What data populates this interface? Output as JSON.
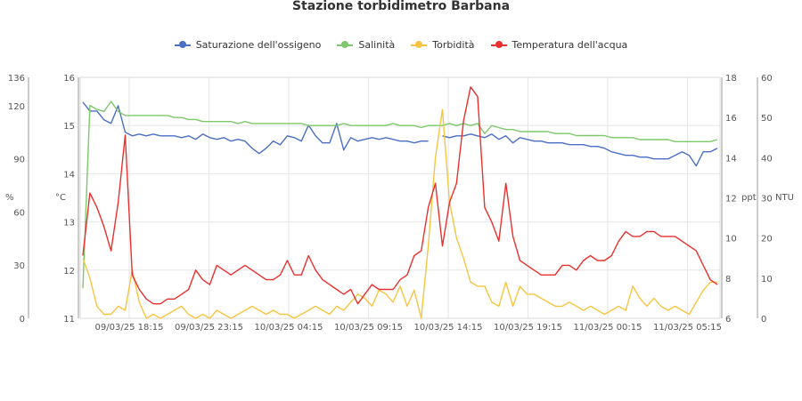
{
  "chart_data": {
    "type": "line",
    "title": "Stazione torbidimetro Barbana",
    "legend": {
      "position": "top-center"
    },
    "x": {
      "ticks": [
        "09/03/25 18:15",
        "09/03/25 23:15",
        "10/03/25 04:15",
        "10/03/25 09:15",
        "10/03/25 14:15",
        "10/03/25 19:15",
        "11/03/25 00:15",
        "11/03/25 05:15"
      ],
      "range": [
        "09/03/25 16:10",
        "11/03/25 08:00"
      ]
    },
    "axes": [
      {
        "id": "pct",
        "label": "%",
        "side": "left-outer",
        "range": [
          0,
          136
        ],
        "ticks": [
          0,
          30,
          60,
          90,
          120,
          136
        ]
      },
      {
        "id": "temp",
        "label": "°C",
        "side": "left-inner",
        "range": [
          11,
          16
        ],
        "ticks": [
          11,
          12,
          13,
          14,
          15,
          16
        ]
      },
      {
        "id": "sal",
        "label": "ppt",
        "side": "right-inner",
        "range": [
          6,
          18
        ],
        "ticks": [
          6,
          8,
          10,
          12,
          14,
          16,
          18
        ]
      },
      {
        "id": "ntu",
        "label": "NTU",
        "side": "right-outer",
        "range": [
          0,
          60
        ],
        "ticks": [
          0,
          10,
          20,
          30,
          40,
          50,
          60
        ]
      }
    ],
    "grid": true,
    "series": [
      {
        "name": "Saturazione dell'ossigeno",
        "color": "#4a6fc5",
        "axis": "pct",
        "values": [
          122,
          117,
          117,
          112,
          110,
          120,
          105,
          103,
          104,
          103,
          104,
          103,
          103,
          103,
          102,
          103,
          101,
          104,
          102,
          101,
          102,
          100,
          101,
          100,
          96,
          93,
          96,
          100,
          98,
          103,
          102,
          100,
          109,
          103,
          99,
          99,
          110,
          95,
          102,
          100,
          101,
          102,
          101,
          102,
          101,
          100,
          100,
          99,
          100,
          100,
          null,
          103,
          102,
          103,
          103,
          104,
          103,
          102,
          104,
          101,
          103,
          99,
          102,
          101,
          100,
          100,
          99,
          99,
          99,
          98,
          98,
          98,
          97,
          97,
          96,
          94,
          93,
          92,
          92,
          91,
          91,
          90,
          90,
          90,
          92,
          94,
          92,
          86,
          94,
          94,
          96
        ]
      },
      {
        "name": "Salinità",
        "color": "#7dc86a",
        "axis": "sal",
        "values": [
          7.5,
          16.6,
          16.4,
          16.3,
          16.8,
          16.3,
          16.1,
          16.1,
          16.1,
          16.1,
          16.1,
          16.1,
          16.1,
          16.0,
          16.0,
          15.9,
          15.9,
          15.8,
          15.8,
          15.8,
          15.8,
          15.8,
          15.7,
          15.8,
          15.7,
          15.7,
          15.7,
          15.7,
          15.7,
          15.7,
          15.7,
          15.7,
          15.6,
          15.6,
          15.6,
          15.6,
          15.6,
          15.7,
          15.6,
          15.6,
          15.6,
          15.6,
          15.6,
          15.6,
          15.7,
          15.6,
          15.6,
          15.6,
          15.5,
          15.6,
          15.6,
          15.6,
          15.7,
          15.6,
          15.7,
          15.6,
          15.7,
          15.2,
          15.6,
          15.5,
          15.4,
          15.4,
          15.3,
          15.3,
          15.3,
          15.3,
          15.3,
          15.2,
          15.2,
          15.2,
          15.1,
          15.1,
          15.1,
          15.1,
          15.1,
          15.0,
          15.0,
          15.0,
          15.0,
          14.9,
          14.9,
          14.9,
          14.9,
          14.9,
          14.8,
          14.8,
          14.8,
          14.8,
          14.8,
          14.8,
          14.9
        ]
      },
      {
        "name": "Torbidità",
        "color": "#f5c542",
        "axis": "ntu",
        "values": [
          15,
          10,
          3,
          1,
          1,
          3,
          2,
          12,
          4,
          0,
          1,
          0,
          1,
          2,
          3,
          1,
          0,
          1,
          0,
          2,
          1,
          0,
          1,
          2,
          3,
          2,
          1,
          2,
          1,
          1,
          0,
          1,
          2,
          3,
          2,
          1,
          3,
          2,
          4,
          6,
          5,
          3,
          7,
          6,
          4,
          8,
          3,
          7,
          0,
          18,
          40,
          52,
          29,
          20,
          15,
          9,
          8,
          8,
          4,
          3,
          9,
          3,
          8,
          6,
          6,
          5,
          4,
          3,
          3,
          4,
          3,
          2,
          3,
          2,
          1,
          2,
          3,
          2,
          8,
          5,
          3,
          5,
          3,
          2,
          3,
          2,
          1,
          4,
          7,
          9,
          9
        ]
      },
      {
        "name": "Temperatura dell'acqua",
        "color": "#e8312e",
        "axis": "temp",
        "values": [
          12.3,
          13.6,
          13.3,
          12.9,
          12.4,
          13.4,
          14.8,
          11.9,
          11.6,
          11.4,
          11.3,
          11.3,
          11.4,
          11.4,
          11.5,
          11.6,
          12.0,
          11.8,
          11.7,
          12.1,
          12.0,
          11.9,
          12.0,
          12.1,
          12.0,
          11.9,
          11.8,
          11.8,
          11.9,
          12.2,
          11.9,
          11.9,
          12.3,
          12.0,
          11.8,
          11.7,
          11.6,
          11.5,
          11.6,
          11.3,
          11.5,
          11.7,
          11.6,
          11.6,
          11.6,
          11.8,
          11.9,
          12.3,
          12.4,
          13.3,
          13.8,
          12.5,
          13.4,
          13.8,
          15.1,
          15.8,
          15.6,
          13.3,
          13.0,
          12.6,
          13.8,
          12.7,
          12.2,
          12.1,
          12.0,
          11.9,
          11.9,
          11.9,
          12.1,
          12.1,
          12.0,
          12.2,
          12.3,
          12.2,
          12.2,
          12.3,
          12.6,
          12.8,
          12.7,
          12.7,
          12.8,
          12.8,
          12.7,
          12.7,
          12.7,
          12.6,
          12.5,
          12.4,
          12.1,
          11.8,
          11.7
        ]
      }
    ]
  }
}
